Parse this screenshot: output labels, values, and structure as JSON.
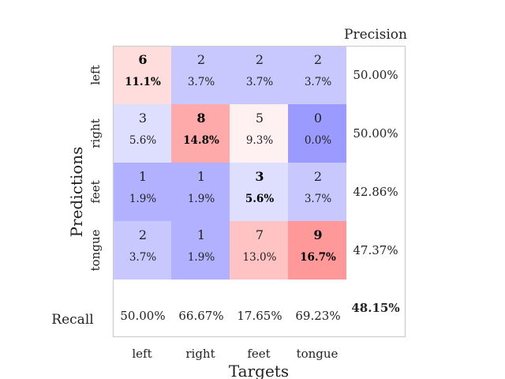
{
  "chart_data": {
    "type": "heatmap",
    "title": "",
    "xlabel": "Targets",
    "ylabel": "Predictions",
    "x_categories": [
      "left",
      "right",
      "feet",
      "tongue"
    ],
    "y_categories": [
      "left",
      "right",
      "feet",
      "tongue"
    ],
    "counts": [
      [
        6,
        2,
        2,
        2
      ],
      [
        3,
        8,
        5,
        0
      ],
      [
        1,
        1,
        3,
        2
      ],
      [
        2,
        1,
        7,
        9
      ]
    ],
    "percents": [
      [
        "11.1%",
        "3.7%",
        "3.7%",
        "3.7%"
      ],
      [
        "5.6%",
        "14.8%",
        "9.3%",
        "0.0%"
      ],
      [
        "1.9%",
        "1.9%",
        "5.6%",
        "3.7%"
      ],
      [
        "3.7%",
        "1.9%",
        "13.0%",
        "16.7%"
      ]
    ],
    "cell_colors": [
      [
        "#ffdddd",
        "#c8c8ff",
        "#c8c8ff",
        "#c8c8ff"
      ],
      [
        "#dedeff",
        "#ffaaaa",
        "#fff1f1",
        "#9a9aff"
      ],
      [
        "#b1b1ff",
        "#b1b1ff",
        "#dedeff",
        "#c8c8ff"
      ],
      [
        "#c8c8ff",
        "#b1b1ff",
        "#ffc3c3",
        "#ff9999"
      ]
    ],
    "precision_label": "Precision",
    "precision": [
      "50.00%",
      "50.00%",
      "42.86%",
      "47.37%"
    ],
    "recall_label": "Recall",
    "recall": [
      "50.00%",
      "66.67%",
      "17.65%",
      "69.23%"
    ],
    "overall_accuracy": "48.15%",
    "grid": false
  }
}
